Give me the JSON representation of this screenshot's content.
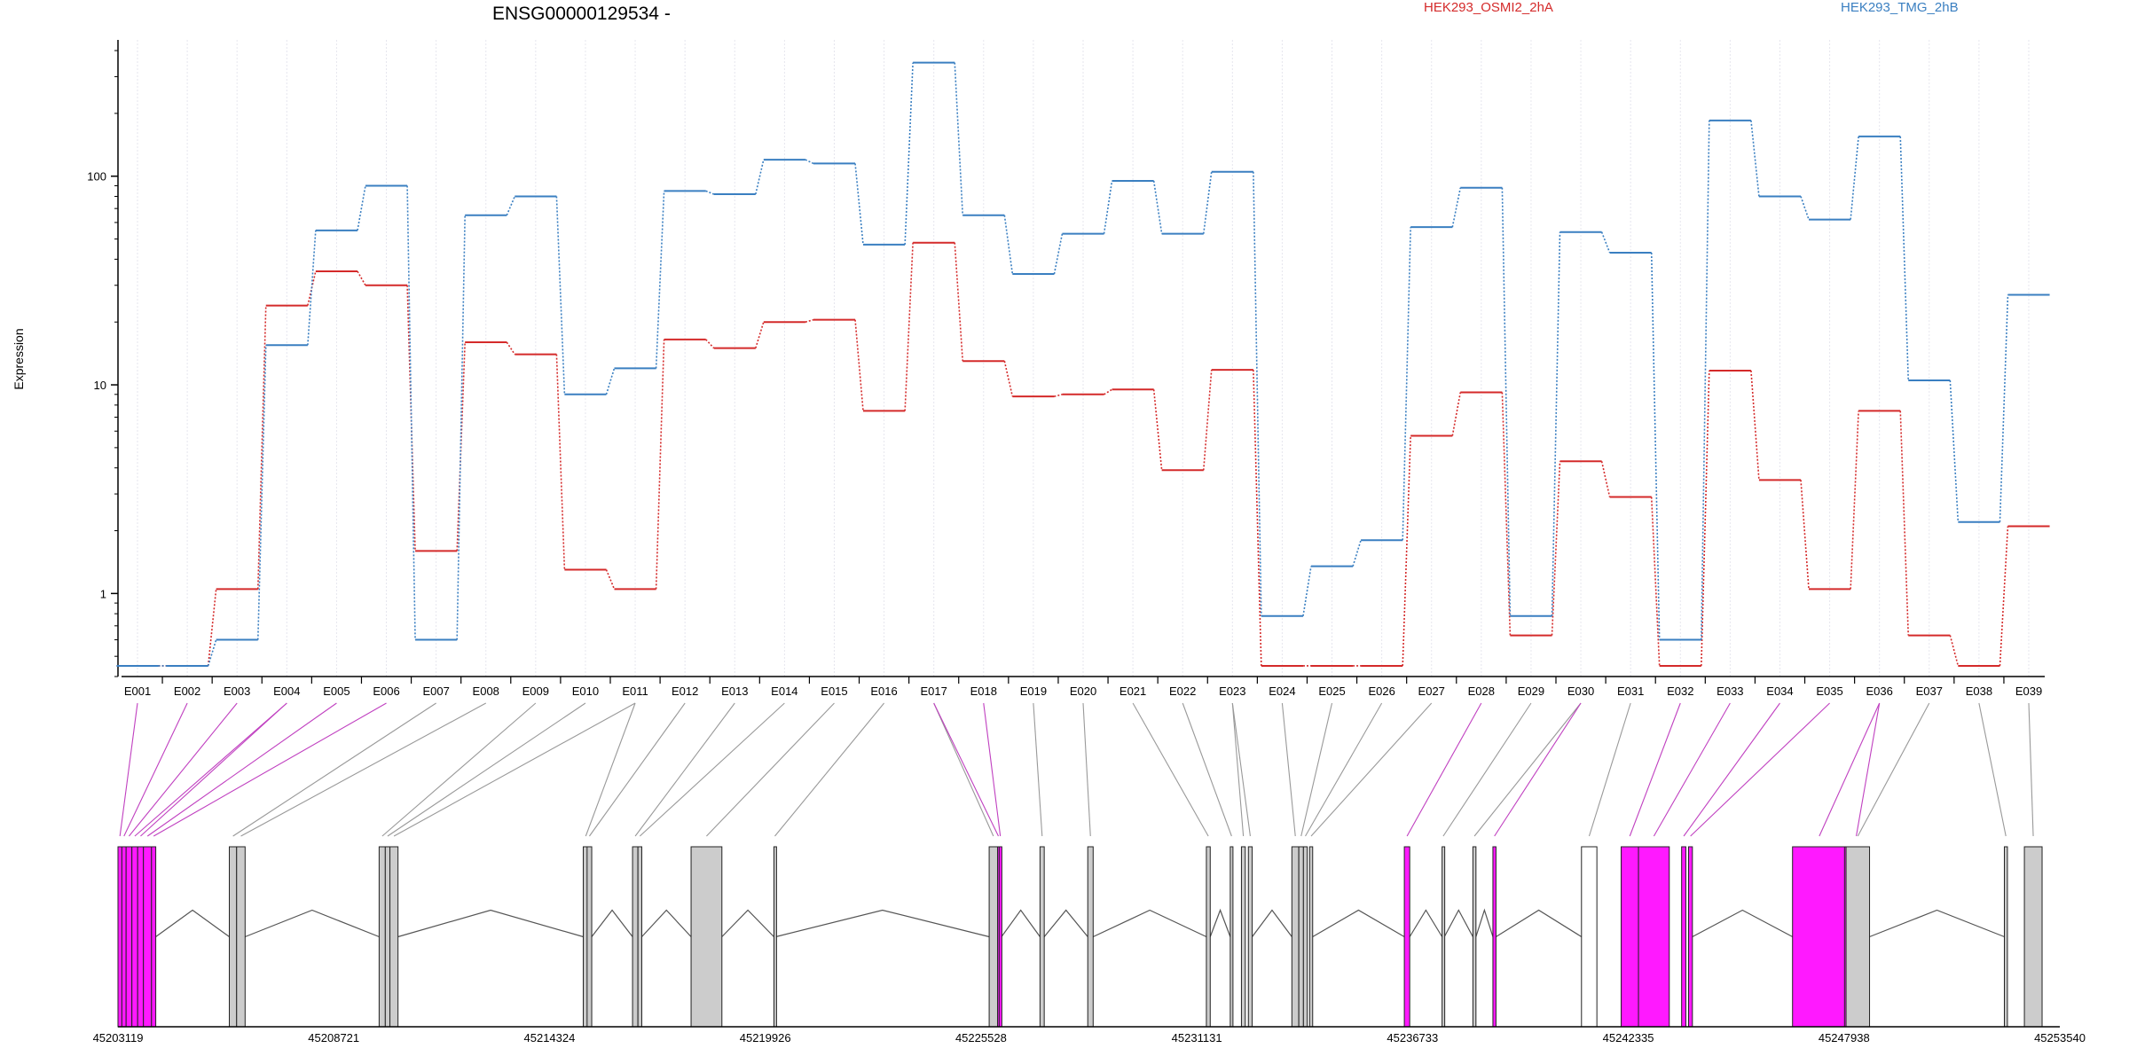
{
  "chart_data": {
    "type": "line",
    "title": "ENSG00000129534 -",
    "ylabel": "Expression",
    "yscale": "log",
    "ylim": [
      0.4,
      450
    ],
    "y_ticks": [
      1,
      10,
      100
    ],
    "y_tick_labels": [
      "1",
      "10",
      "100"
    ],
    "grid": "vertical dotted lines at each exon bin",
    "legend_position": "top",
    "categories": [
      "E001",
      "E002",
      "E003",
      "E004",
      "E005",
      "E006",
      "E007",
      "E008",
      "E009",
      "E010",
      "E011",
      "E012",
      "E013",
      "E014",
      "E015",
      "E016",
      "E017",
      "E018",
      "E019",
      "E020",
      "E021",
      "E022",
      "E023",
      "E024",
      "E025",
      "E026",
      "E027",
      "E028",
      "E029",
      "E030",
      "E031",
      "E032",
      "E033",
      "E034",
      "E035",
      "E036",
      "E037",
      "E038",
      "E039"
    ],
    "series": [
      {
        "name": "HEK293_OSMI2_2hA",
        "color": "#d42a2a",
        "values": [
          0.45,
          0.45,
          1.05,
          24,
          35,
          30,
          1.6,
          16,
          14,
          1.3,
          1.05,
          16.5,
          15,
          20,
          20.5,
          7.5,
          48,
          13,
          8.8,
          9,
          9.5,
          3.9,
          11.8,
          0.45,
          0.45,
          0.45,
          5.7,
          9.2,
          0.63,
          4.3,
          2.9,
          0.45,
          11.7,
          3.5,
          1.05,
          7.5,
          0.63,
          0.45,
          2.1
        ]
      },
      {
        "name": "HEK293_TMG_2hB",
        "color": "#3a7fc1",
        "values": [
          0.45,
          0.45,
          0.6,
          15.5,
          55,
          90,
          0.6,
          65,
          80,
          9,
          12,
          85,
          82,
          120,
          115,
          47,
          350,
          65,
          34,
          53,
          95,
          53,
          105,
          0.78,
          1.35,
          1.8,
          57,
          88,
          0.78,
          54,
          43,
          0.6,
          185,
          80,
          62,
          155,
          10.5,
          2.2,
          27
        ]
      }
    ],
    "gene_model": {
      "coordinates": [
        "45203119",
        "45208721",
        "45214324",
        "45219926",
        "45225528",
        "45231131",
        "45236733",
        "45242335",
        "45247938",
        "45253540"
      ],
      "exon_bin_starts": [
        45203119,
        45203220,
        45203330,
        45203480,
        45203630,
        45203780,
        45203990,
        45206010,
        45206200,
        45209900,
        45210060,
        45210180,
        45215200,
        45215300,
        45216480,
        45216620,
        45218000,
        45220150,
        45225740,
        45225960,
        45226000,
        45227060,
        45228300,
        45231380,
        45232000,
        45232290,
        45232470,
        45233600,
        45233780,
        45233900,
        45234060,
        45236520,
        45237500,
        45238300,
        45238820,
        45241120,
        45242150,
        45242600,
        45243720,
        45243900,
        45246600,
        45247950,
        45247990,
        45252100,
        45252620
      ],
      "exon_bin_ends": [
        45203220,
        45203330,
        45203480,
        45203630,
        45203780,
        45203990,
        45204100,
        45206200,
        45206420,
        45210060,
        45210180,
        45210390,
        45215330,
        45215420,
        45216620,
        45216720,
        45218800,
        45220200,
        45225960,
        45226000,
        45226060,
        45227170,
        45228440,
        45231480,
        45232070,
        45232390,
        45232570,
        45233780,
        45233900,
        45234000,
        45234140,
        45236660,
        45237560,
        45238380,
        45238900,
        45241520,
        45242600,
        45243400,
        45243830,
        45244000,
        45247990,
        45248560,
        45248600,
        45252180,
        45253080
      ],
      "exon_bin_colors": [
        "#ff19ff",
        "#ff19ff",
        "#ff19ff",
        "#ff19ff",
        "#ff19ff",
        "#ff19ff",
        "#ff19ff",
        "#cccccc",
        "#cccccc",
        "#cccccc",
        "#cccccc",
        "#cccccc",
        "#cccccc",
        "#cccccc",
        "#cccccc",
        "#cccccc",
        "#cccccc",
        "#cccccc",
        "#cccccc",
        "#ff19ff",
        "#ff19ff",
        "#cccccc",
        "#cccccc",
        "#cccccc",
        "#cccccc",
        "#cccccc",
        "#cccccc",
        "#cccccc",
        "#cccccc",
        "#cccccc",
        "#cccccc",
        "#ff19ff",
        "#cccccc",
        "#cccccc",
        "#ff19ff",
        "#ffffff",
        "#ff19ff",
        "#ff19ff",
        "#ff19ff",
        "#ff19ff",
        "#ff19ff",
        "#ff19ff",
        "#cccccc",
        "#cccccc",
        "#cccccc"
      ],
      "bin_highlighted": [
        true,
        true,
        true,
        true,
        true,
        true,
        true,
        false,
        false,
        false,
        false,
        false,
        false,
        false,
        false,
        false,
        false,
        false,
        false,
        true,
        true,
        false,
        false,
        false,
        false,
        false,
        false,
        false,
        false,
        false,
        false,
        true,
        false,
        false,
        true,
        false,
        true,
        true,
        true,
        true,
        true,
        true,
        false,
        false,
        false
      ],
      "introns": [
        [
          45204100,
          45206010
        ],
        [
          45206420,
          45209900
        ],
        [
          45210390,
          45215200
        ],
        [
          45215420,
          45216480
        ],
        [
          45216720,
          45218000
        ],
        [
          45218800,
          45220150
        ],
        [
          45220200,
          45225740
        ],
        [
          45226060,
          45227060
        ],
        [
          45227170,
          45228300
        ],
        [
          45228440,
          45231380
        ],
        [
          45231480,
          45232000
        ],
        [
          45232570,
          45233600
        ],
        [
          45234140,
          45236520
        ],
        [
          45236660,
          45237500
        ],
        [
          45237560,
          45238300
        ],
        [
          45238380,
          45238820
        ],
        [
          45238900,
          45241120
        ],
        [
          45244000,
          45246600
        ],
        [
          45248600,
          45252100
        ]
      ]
    }
  }
}
